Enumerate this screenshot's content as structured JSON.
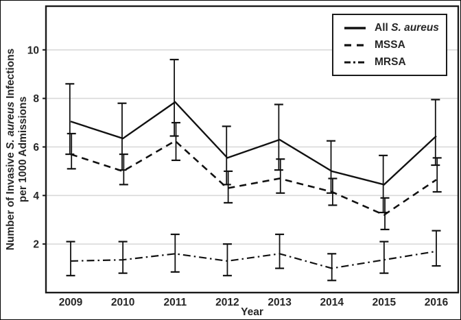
{
  "figure": {
    "xlabel": "Year",
    "ylabel_line1": {
      "pre": "Number of Invasive ",
      "italic": "S. aureus",
      "post": " Infections"
    },
    "ylabel_line2": "per 1000 Admissions"
  },
  "legend": {
    "items": [
      {
        "prefix": "All ",
        "italic": "S. aureus",
        "line_style": "solid"
      },
      {
        "prefix": "MSSA",
        "italic": "",
        "line_style": "dashed"
      },
      {
        "prefix": "MRSA",
        "italic": "",
        "line_style": "dashdot"
      }
    ]
  },
  "chart_data": {
    "type": "line",
    "title": "",
    "xlabel": "Year",
    "ylabel": "Number of Invasive S. aureus Infections per 1000 Admissions",
    "categories": [
      "2009",
      "2010",
      "2011",
      "2012",
      "2013",
      "2014",
      "2015",
      "2016"
    ],
    "yticks": [
      2,
      4,
      6,
      8,
      10
    ],
    "ylim": [
      0,
      11.8
    ],
    "grid": true,
    "legend_position": "top-right",
    "error_bars": true,
    "line_color": "#111111",
    "grid_color": "#d9d9d9",
    "series": [
      {
        "name": "All S. aureus",
        "style": "solid",
        "values": [
          7.05,
          6.35,
          7.85,
          5.55,
          6.3,
          5.0,
          4.45,
          6.45
        ],
        "err_low": [
          5.7,
          5.05,
          6.45,
          4.45,
          5.05,
          4.1,
          3.3,
          5.25
        ],
        "err_high": [
          8.6,
          7.8,
          9.6,
          6.85,
          7.75,
          6.25,
          5.65,
          7.95
        ]
      },
      {
        "name": "MSSA",
        "style": "dashed",
        "values": [
          5.7,
          5.0,
          6.25,
          4.3,
          4.7,
          4.15,
          3.2,
          4.65
        ],
        "err_low": [
          5.1,
          4.45,
          5.45,
          3.7,
          4.1,
          3.6,
          2.6,
          4.15
        ],
        "err_high": [
          6.55,
          5.7,
          7.0,
          5.0,
          5.5,
          4.7,
          3.9,
          5.55
        ]
      },
      {
        "name": "MRSA",
        "style": "dashdot",
        "values": [
          1.3,
          1.35,
          1.6,
          1.3,
          1.6,
          1.0,
          1.35,
          1.7
        ],
        "err_low": [
          0.7,
          0.8,
          0.85,
          0.7,
          1.0,
          0.5,
          0.8,
          1.1
        ],
        "err_high": [
          2.1,
          2.1,
          2.4,
          2.0,
          2.4,
          1.6,
          2.1,
          2.55
        ]
      }
    ]
  }
}
